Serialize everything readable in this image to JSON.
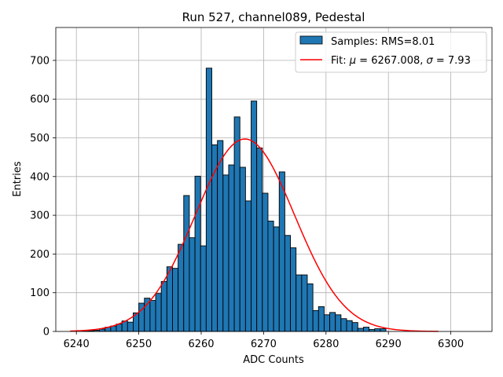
{
  "chart_data": {
    "type": "bar",
    "title": "Run 527, channel089, Pedestal",
    "xlabel": "ADC Counts",
    "ylabel": "Entries",
    "xlim": [
      6236.7,
      6306.6
    ],
    "ylim": [
      0,
      785
    ],
    "xticks": [
      6240,
      6250,
      6260,
      6270,
      6280,
      6290,
      6300
    ],
    "yticks": [
      0,
      100,
      200,
      300,
      400,
      500,
      600,
      700
    ],
    "grid": true,
    "legend_position": "top-right",
    "histogram": {
      "name": "Samples: RMS=8.01",
      "color": "#1f77b4",
      "edgecolor": "#000000",
      "bin_width": 0.9,
      "bins": [
        [
          6241.0,
          1
        ],
        [
          6241.9,
          2
        ],
        [
          6242.8,
          3
        ],
        [
          6243.7,
          6
        ],
        [
          6244.6,
          11
        ],
        [
          6245.5,
          14
        ],
        [
          6246.4,
          19
        ],
        [
          6247.3,
          27
        ],
        [
          6248.2,
          24
        ],
        [
          6249.1,
          48
        ],
        [
          6250.0,
          73
        ],
        [
          6250.9,
          86
        ],
        [
          6251.8,
          80
        ],
        [
          6252.7,
          98
        ],
        [
          6253.6,
          129
        ],
        [
          6254.5,
          167
        ],
        [
          6255.4,
          163
        ],
        [
          6256.3,
          225
        ],
        [
          6257.2,
          351
        ],
        [
          6258.1,
          242
        ],
        [
          6259.0,
          401
        ],
        [
          6259.9,
          221
        ],
        [
          6260.8,
          680
        ],
        [
          6261.7,
          482
        ],
        [
          6262.6,
          493
        ],
        [
          6263.5,
          404
        ],
        [
          6264.4,
          430
        ],
        [
          6265.3,
          554
        ],
        [
          6266.2,
          424
        ],
        [
          6267.1,
          337
        ],
        [
          6268.0,
          595
        ],
        [
          6268.9,
          474
        ],
        [
          6269.8,
          357
        ],
        [
          6270.7,
          285
        ],
        [
          6271.6,
          270
        ],
        [
          6272.5,
          412
        ],
        [
          6273.4,
          248
        ],
        [
          6274.3,
          216
        ],
        [
          6275.2,
          146
        ],
        [
          6276.1,
          146
        ],
        [
          6277.0,
          123
        ],
        [
          6277.9,
          54
        ],
        [
          6278.8,
          64
        ],
        [
          6279.7,
          43
        ],
        [
          6280.6,
          49
        ],
        [
          6281.5,
          43
        ],
        [
          6282.4,
          33
        ],
        [
          6283.3,
          28
        ],
        [
          6284.2,
          23
        ],
        [
          6285.1,
          8
        ],
        [
          6286.0,
          11
        ],
        [
          6286.9,
          5
        ],
        [
          6287.8,
          7
        ],
        [
          6288.7,
          7
        ]
      ]
    },
    "fit": {
      "label_prefix": "Fit: ",
      "mu_symbol": "μ",
      "sigma_symbol": "σ",
      "mu_text": " = 6267.008, ",
      "sigma_text": " = 7.93",
      "color": "#ff0000",
      "mu": 6267.008,
      "sigma": 7.93,
      "amplitude": 497,
      "x_range": [
        6239.0,
        6298.0
      ]
    }
  }
}
